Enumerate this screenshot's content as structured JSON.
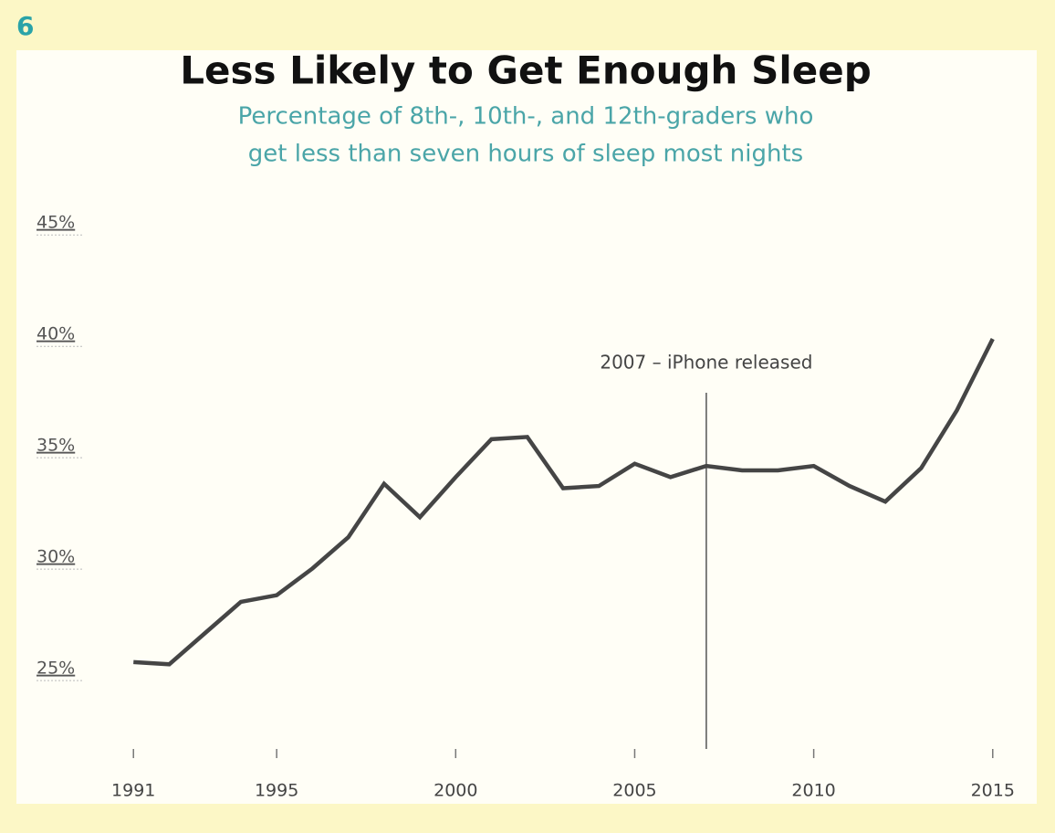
{
  "figure_number": "6",
  "chart_data": {
    "type": "line",
    "title": "Less Likely to Get Enough Sleep",
    "subtitle": [
      "Percentage of 8th-, 10th-, and 12th-graders who",
      "get less than seven hours of sleep most nights"
    ],
    "x": [
      1991,
      1992,
      1993,
      1994,
      1995,
      1996,
      1997,
      1998,
      1999,
      2000,
      2001,
      2002,
      2003,
      2004,
      2005,
      2006,
      2007,
      2008,
      2009,
      2010,
      2011,
      2012,
      2013,
      2014,
      2015
    ],
    "values": [
      25.3,
      25.2,
      26.6,
      28.0,
      28.3,
      29.5,
      30.9,
      33.3,
      31.8,
      33.6,
      35.3,
      35.4,
      33.1,
      33.2,
      34.2,
      33.6,
      34.1,
      33.9,
      33.9,
      34.1,
      33.2,
      32.5,
      34.0,
      36.6,
      39.8
    ],
    "color": "#454545",
    "xlim": [
      1990,
      2016
    ],
    "xticks": [
      1991,
      1995,
      2000,
      2005,
      2010,
      2015
    ],
    "ylim": [
      21.4,
      45.5
    ],
    "yticks": [
      {
        "value": 25,
        "label": "25%"
      },
      {
        "value": 30,
        "label": "30%"
      },
      {
        "value": 35,
        "label": "35%"
      },
      {
        "value": 40,
        "label": "40%"
      },
      {
        "value": 45,
        "label": "45%"
      }
    ],
    "annotations": [
      {
        "x": 2007,
        "text": "2007 – iPhone released"
      }
    ]
  }
}
